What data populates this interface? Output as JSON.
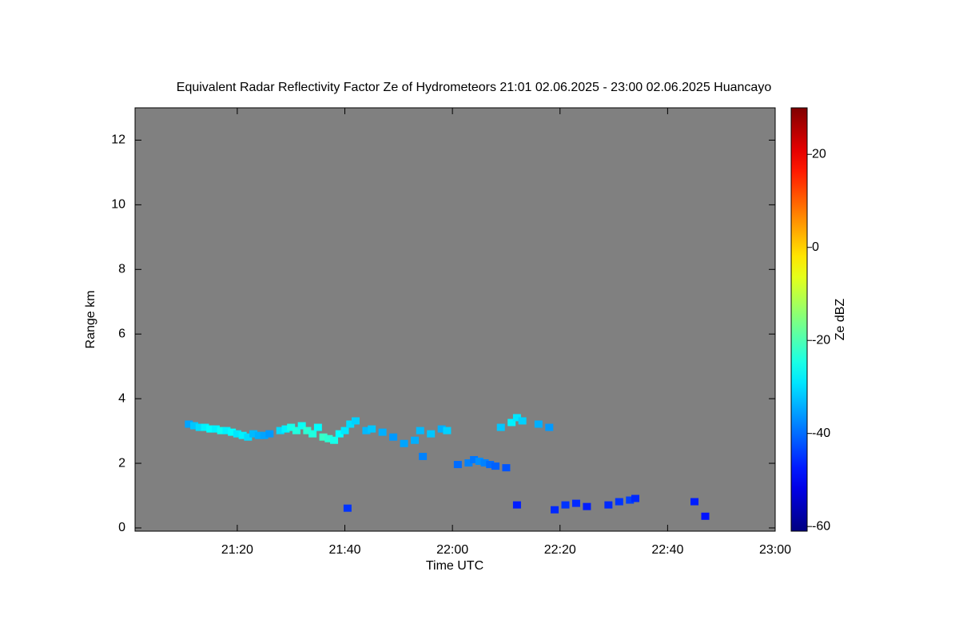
{
  "chart_data": {
    "type": "radar",
    "title": "Equivalent Radar Reflectivity Factor Ze of Hydrometeors   21:01 02.06.2025 - 23:00 02.06.2025 Huancayo",
    "x_label": "Time UTC",
    "y_label": "Range km",
    "colorbar_label": "Ze dBZ",
    "xlim": [
      1261,
      1380
    ],
    "xticks": [
      {
        "value": 1280,
        "label": "21:20"
      },
      {
        "value": 1300,
        "label": "21:40"
      },
      {
        "value": 1320,
        "label": "22:00"
      },
      {
        "value": 1340,
        "label": "22:20"
      },
      {
        "value": 1360,
        "label": "22:40"
      },
      {
        "value": 1380,
        "label": "23:00"
      }
    ],
    "ylim": [
      -0.1,
      13
    ],
    "yticks": [
      0,
      2,
      4,
      6,
      8,
      10,
      12
    ],
    "clim": [
      -61,
      30
    ],
    "cticks": [
      -60,
      -40,
      -20,
      0,
      20
    ],
    "colormap": "jet",
    "background": "#808080",
    "x": [
      1271,
      1272,
      1273,
      1274,
      1275,
      1276,
      1277,
      1278,
      1279,
      1280,
      1281,
      1282,
      1283,
      1284,
      1285,
      1286,
      1288,
      1289,
      1290,
      1291,
      1292,
      1293,
      1294,
      1295,
      1296,
      1297,
      1298,
      1299,
      1300,
      1301,
      1302,
      1304,
      1305,
      1307,
      1309,
      1311,
      1313,
      1314,
      1316,
      1318,
      1321,
      1323,
      1324,
      1325,
      1326,
      1327,
      1328,
      1330,
      1329,
      1331,
      1332,
      1333,
      1336,
      1338,
      1300.5,
      1332,
      1339,
      1341,
      1343,
      1345,
      1349,
      1351,
      1353,
      1354,
      1365,
      1367,
      1314.5,
      1319
    ],
    "y": [
      3.2,
      3.15,
      3.1,
      3.1,
      3.05,
      3.05,
      3.0,
      3.0,
      2.95,
      2.9,
      2.85,
      2.8,
      2.9,
      2.85,
      2.85,
      2.9,
      3.0,
      3.05,
      3.1,
      3.0,
      3.15,
      3.0,
      2.9,
      3.1,
      2.8,
      2.75,
      2.7,
      2.9,
      3.0,
      3.2,
      3.3,
      3.0,
      3.05,
      2.95,
      2.8,
      2.6,
      2.7,
      3.0,
      2.9,
      3.05,
      1.95,
      2.0,
      2.1,
      2.05,
      2.0,
      1.95,
      1.9,
      1.85,
      3.1,
      3.25,
      3.4,
      3.3,
      3.2,
      3.1,
      0.6,
      0.7,
      0.55,
      0.7,
      0.75,
      0.65,
      0.7,
      0.8,
      0.85,
      0.9,
      0.8,
      0.35,
      2.2,
      3.0
    ],
    "values": [
      -35,
      -32,
      -30,
      -28,
      -27,
      -28,
      -26,
      -28,
      -27,
      -29,
      -28,
      -30,
      -33,
      -34,
      -35,
      -36,
      -30,
      -28,
      -25,
      -24,
      -26,
      -23,
      -24,
      -27,
      -22,
      -23,
      -25,
      -27,
      -29,
      -30,
      -31,
      -33,
      -32,
      -34,
      -36,
      -35,
      -34,
      -33,
      -32,
      -34,
      -40,
      -38,
      -39,
      -37,
      -38,
      -40,
      -41,
      -42,
      -32,
      -28,
      -29,
      -31,
      -34,
      -36,
      -45,
      -47,
      -46,
      -45,
      -46,
      -47,
      -46,
      -45,
      -44,
      -46,
      -47,
      -48,
      -38,
      -31
    ]
  }
}
